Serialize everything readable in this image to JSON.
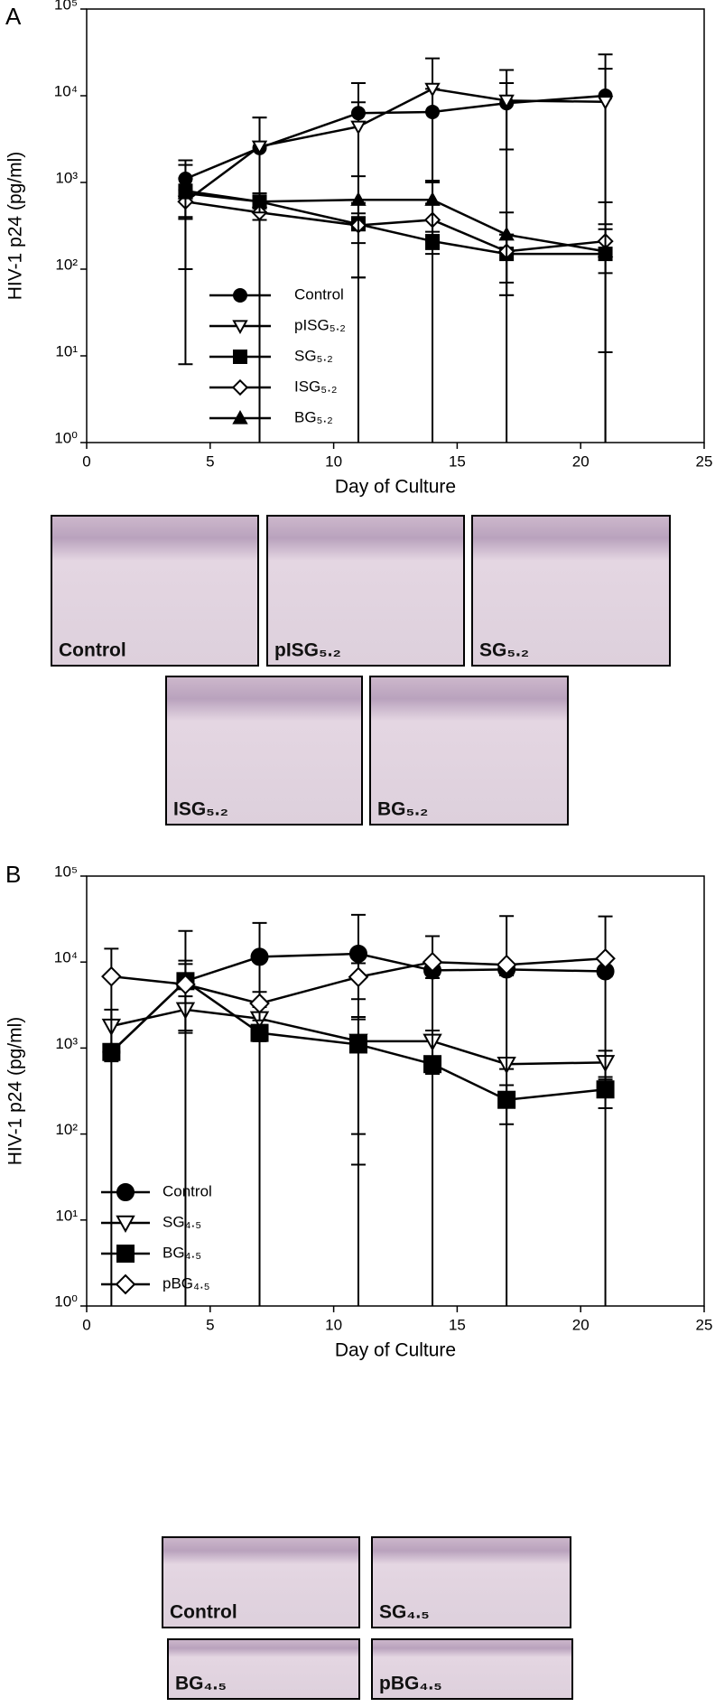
{
  "chart_data": [
    {
      "type": "line",
      "panel": "A",
      "xlabel": "Day of Culture",
      "ylabel": "HIV-1 p24 (pg/ml)",
      "log_y": true,
      "xlim": [
        0,
        25
      ],
      "xticks": [
        0,
        5,
        10,
        15,
        20,
        25
      ],
      "ylim": [
        1,
        100000
      ],
      "yticks": [
        {
          "value": 1,
          "label": "10⁰"
        },
        {
          "value": 10,
          "label": "10¹"
        },
        {
          "value": 100,
          "label": "10²"
        },
        {
          "value": 1000,
          "label": "10³"
        },
        {
          "value": 10000,
          "label": "10⁴"
        },
        {
          "value": 100000,
          "label": "10⁵"
        }
      ],
      "x": [
        4,
        7,
        11,
        14,
        17,
        21
      ],
      "series": [
        {
          "name": "Control",
          "marker": "circle",
          "filled": true,
          "color": "#000000",
          "values": [
            1100,
            2500,
            6300,
            6500,
            8200,
            10000
          ],
          "errors": [
            700,
            3100,
            7700,
            5500,
            5800,
            20000
          ]
        },
        {
          "name": "pISG₅.₂",
          "marker": "triangle-down",
          "filled": false,
          "color": "#000000",
          "values": [
            600,
            2600,
            4400,
            12000,
            8800,
            8500
          ],
          "errors": [
            500,
            3000,
            4000,
            15000,
            11000,
            12000
          ]
        },
        {
          "name": "SG₅.₂",
          "marker": "square",
          "filled": true,
          "color": "#000000",
          "values": [
            800,
            600,
            330,
            210,
            150,
            150
          ],
          "errors": [
            792,
            100,
            250,
            60,
            100,
            139
          ]
        },
        {
          "name": "ISG₅.₂",
          "marker": "diamond",
          "filled": false,
          "color": "#000000",
          "values": [
            600,
            450,
            320,
            370,
            160,
            210
          ],
          "errors": [
            220,
            80,
            120,
            200,
            90,
            120
          ]
        },
        {
          "name": "BG₅.₂",
          "marker": "triangle-up",
          "filled": true,
          "color": "#000000",
          "values": [
            750,
            600,
            630,
            630,
            250,
            160
          ],
          "errors": [
            370,
            150,
            550,
            420,
            200,
            430
          ]
        }
      ],
      "image_labels": [
        "Control",
        "pISG₅.₂",
        "SG₅.₂",
        "ISG₅.₂",
        "BG₅.₂"
      ]
    },
    {
      "type": "line",
      "panel": "B",
      "xlabel": "Day of Culture",
      "ylabel": "HIV-1 p24 (pg/ml)",
      "log_y": true,
      "xlim": [
        0,
        25
      ],
      "xticks": [
        0,
        5,
        10,
        15,
        20,
        25
      ],
      "ylim": [
        1,
        100000
      ],
      "yticks": [
        {
          "value": 1,
          "label": "10⁰"
        },
        {
          "value": 10,
          "label": "10¹"
        },
        {
          "value": 100,
          "label": "10²"
        },
        {
          "value": 1000,
          "label": "10³"
        },
        {
          "value": 10000,
          "label": "10⁴"
        },
        {
          "value": 100000,
          "label": "10⁵"
        }
      ],
      "x": [
        1,
        4,
        7,
        11,
        14,
        17,
        21
      ],
      "series": [
        {
          "name": "Control",
          "marker": "circle",
          "filled": true,
          "color": "#000000",
          "values": [
            900,
            6000,
            11500,
            12500,
            8000,
            8200,
            7800
          ],
          "errors": [
            200,
            17000,
            17000,
            23000,
            1500,
            1200,
            1000
          ]
        },
        {
          "name": "SG₄.₅",
          "marker": "triangle-down",
          "filled": false,
          "color": "#000000",
          "values": [
            1800,
            2800,
            2200,
            1200,
            1200,
            650,
            680
          ],
          "errors": [
            1000,
            1200,
            800,
            1100,
            400,
            80,
            250
          ]
        },
        {
          "name": "BG₄.₅",
          "marker": "square",
          "filled": true,
          "color": "#000000",
          "values": [
            900,
            6000,
            1500,
            1100,
            650,
            250,
            330
          ],
          "errors": [
            150,
            4400,
            300,
            1056,
            150,
            120,
            130
          ]
        },
        {
          "name": "pBG₄.₅",
          "marker": "diamond",
          "filled": false,
          "color": "#000000",
          "values": [
            6800,
            5500,
            3300,
            6700,
            10000,
            9300,
            11000
          ],
          "errors": [
            7500,
            4000,
            1200,
            3000,
            10000,
            25000,
            23000
          ]
        }
      ],
      "image_labels": [
        "Control",
        "SG₄.₅",
        "BG₄.₅",
        "pBG₄.₅"
      ]
    }
  ]
}
